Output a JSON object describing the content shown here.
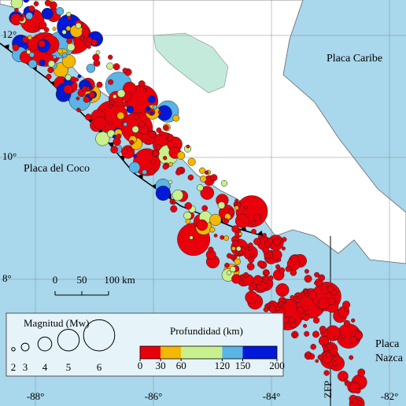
{
  "map": {
    "labels": {
      "caribbean": "Placa Caribe",
      "cocos": "Placa del Coco",
      "nazca_1": "Placa",
      "nazca_2": "Nazca",
      "zfp": "ZFP"
    },
    "latitudes": [
      "12°",
      "10°",
      "8°"
    ],
    "longitudes": [
      "-88°",
      "-86°",
      "-84°",
      "-82°"
    ],
    "scale_bar": [
      "0",
      "50",
      "100 km"
    ]
  },
  "legend": {
    "magnitude": {
      "title": "Magnitud (Mw)",
      "values": [
        2,
        3,
        4,
        5,
        6
      ]
    },
    "depth": {
      "title": "Profundidad (km)",
      "ticks": [
        0,
        30,
        60,
        120,
        150,
        200
      ],
      "colors": [
        "#e8000b",
        "#f5b800",
        "#c8f08c",
        "#5ab4e6",
        "#0018d8"
      ]
    }
  }
}
